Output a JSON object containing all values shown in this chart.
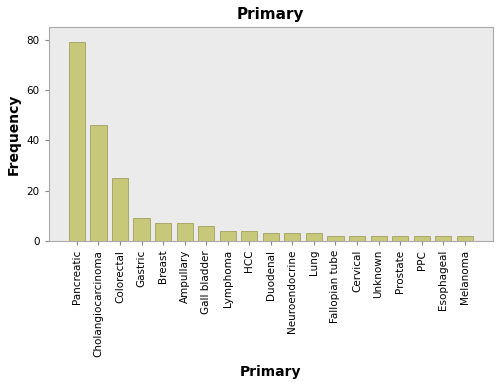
{
  "categories": [
    "Pancreatic",
    "Cholangiocarcinoma",
    "Colorectal",
    "Gastric",
    "Breast",
    "Ampullary",
    "Gall bladder",
    "Lymphoma",
    "HCC",
    "Duodenal",
    "Neuroendocrine",
    "Lung",
    "Fallopian tube",
    "Cervical",
    "Unknown",
    "Prostate",
    "PPC",
    "Esophageal",
    "Melanoma"
  ],
  "values": [
    79,
    46,
    25,
    9,
    7,
    7,
    6,
    4,
    4,
    3,
    3,
    3,
    2,
    2,
    2,
    2,
    2,
    2,
    2
  ],
  "bar_color": "#c8c87a",
  "bar_edgecolor": "#a0a060",
  "title": "Primary",
  "xlabel": "Primary",
  "ylabel": "Frequency",
  "ylim": [
    0,
    85
  ],
  "yticks": [
    0,
    20,
    40,
    60,
    80
  ],
  "plot_bg_color": "#ebebeb",
  "fig_bg_color": "#ffffff",
  "title_fontsize": 11,
  "label_fontsize": 10,
  "tick_fontsize": 7.5
}
